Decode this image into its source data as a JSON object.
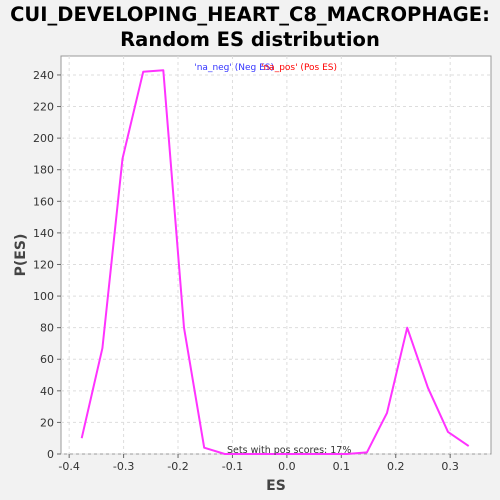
{
  "chart_data": {
    "type": "line",
    "title": "CUI_DEVELOPING_HEART_C8_MACROPHAGE:",
    "subtitle": "Random ES distribution",
    "xlabel": "ES",
    "ylabel": "P(ES)",
    "xlim": [
      -0.415,
      0.375
    ],
    "ylim": [
      0,
      252
    ],
    "x_ticks": [
      "-0.4",
      "-0.3",
      "-0.2",
      "-0.1",
      "0.0",
      "0.1",
      "0.2",
      "0.3"
    ],
    "y_ticks": [
      "0",
      "20",
      "40",
      "60",
      "80",
      "100",
      "120",
      "140",
      "160",
      "180",
      "200",
      "220",
      "240"
    ],
    "grid": true,
    "legend": {
      "position": "top-center",
      "neg_text": "'na_neg' (Neg ES)",
      "pos_text": "'na_pos' (Pos ES)",
      "neg_color": "#3333ff",
      "pos_color": "#ff0000"
    },
    "annotation": "Sets with pos scores: 17%",
    "series": [
      {
        "color": "#ff33ff",
        "x": [
          -0.377,
          -0.339,
          -0.302,
          -0.264,
          -0.227,
          -0.189,
          -0.152,
          -0.114,
          -0.077,
          -0.039,
          -0.002,
          0.036,
          0.073,
          0.11,
          0.147,
          0.184,
          0.221,
          0.259,
          0.296,
          0.334
        ],
        "y": [
          10,
          67,
          187,
          242,
          243,
          80,
          4,
          0,
          0,
          0,
          0,
          0,
          0,
          0,
          1,
          26,
          80,
          42,
          14,
          5
        ]
      }
    ]
  },
  "colors": {
    "background": "#f2f2f2",
    "plot_background": "#ffffff",
    "grid": "#dddddd"
  }
}
